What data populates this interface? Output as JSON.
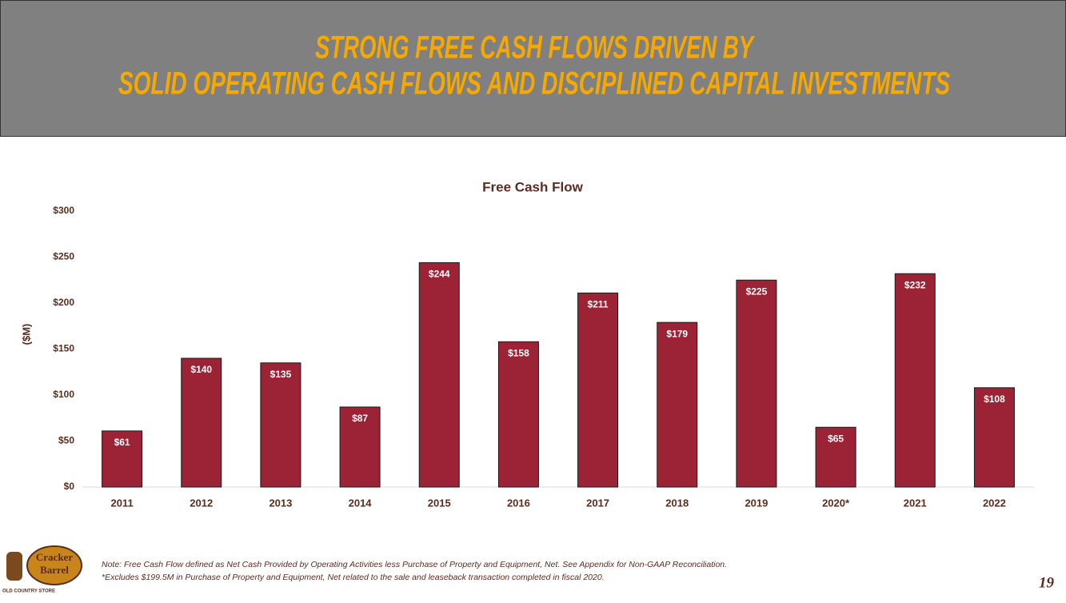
{
  "header": {
    "title_line1": "STRONG FREE CASH FLOWS DRIVEN BY",
    "title_line2": "SOLID OPERATING CASH FLOWS AND DISCIPLINED CAPITAL INVESTMENTS"
  },
  "chart_data": {
    "type": "bar",
    "title": "Free Cash Flow",
    "y_label": "($M)",
    "categories": [
      "2011",
      "2012",
      "2013",
      "2014",
      "2015",
      "2016",
      "2017",
      "2018",
      "2019",
      "2020*",
      "2021",
      "2022"
    ],
    "values": [
      61,
      140,
      135,
      87,
      244,
      158,
      211,
      179,
      225,
      65,
      232,
      108
    ],
    "value_labels": [
      "$61",
      "$140",
      "$135",
      "$87",
      "$244",
      "$158",
      "$211",
      "$179",
      "$225",
      "$65",
      "$232",
      "$108"
    ],
    "color": "#9b2335",
    "ylim": [
      0,
      300
    ],
    "yticks": [
      {
        "value": 0,
        "label": "$0"
      },
      {
        "value": 50,
        "label": "$50"
      },
      {
        "value": 100,
        "label": "$100"
      },
      {
        "value": 150,
        "label": "$150"
      },
      {
        "value": 200,
        "label": "$200"
      },
      {
        "value": 250,
        "label": "$250"
      },
      {
        "value": 300,
        "label": "$300"
      }
    ],
    "grid": false
  },
  "footer": {
    "note1": "Note: Free Cash Flow defined as Net Cash Provided by Operating Activities less Purchase of Property and Equipment, Net. See Appendix for Non-GAAP Reconciliation.",
    "note2": "*Excludes $199.5M in Purchase of Property and Equipment, Net related to the sale and leaseback transaction completed in fiscal 2020.",
    "page": "19"
  },
  "logo": {
    "line1": "Cracker",
    "line2": "Barrel",
    "tagline": "OLD COUNTRY STORE"
  }
}
